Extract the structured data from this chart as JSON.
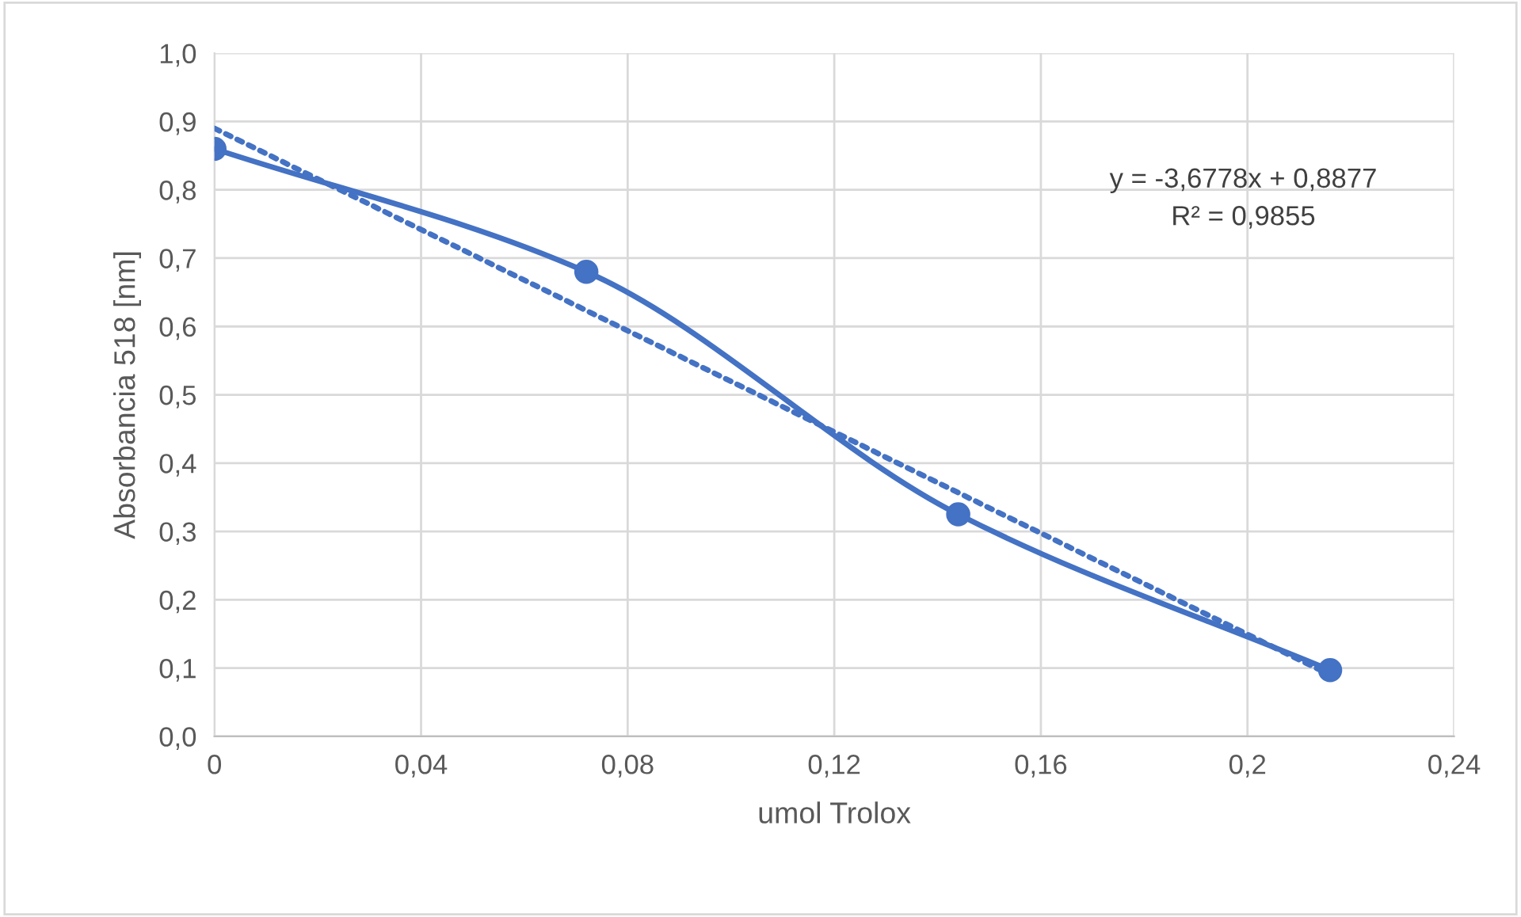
{
  "chart_data": {
    "type": "line",
    "xlabel": "umol Trolox",
    "ylabel": "Absorbancia 518 [nm]",
    "series": [
      {
        "color": "#4472c4",
        "x": [
          0,
          0.072,
          0.144,
          0.216
        ],
        "values": [
          0.86,
          0.68,
          0.325,
          0.097
        ],
        "marker": "circle",
        "line_style": "solid"
      },
      {
        "color": "#4472c4",
        "x": [
          0,
          0.216
        ],
        "values": [
          0.89,
          0.09
        ],
        "marker": "none",
        "line_style": "dotted"
      }
    ],
    "annotations": [
      "y = -3,6778x + 0,8877\nR² = 0,9855"
    ],
    "xlim": [
      0,
      0.24
    ],
    "ylim": [
      0,
      1.0
    ],
    "xticks": [
      0,
      {
        "value": 0.04,
        "label": "0,04"
      },
      {
        "value": 0.08,
        "label": "0,08"
      },
      {
        "value": 0.12,
        "label": "0,12"
      },
      {
        "value": 0.16,
        "label": "0,16"
      },
      {
        "value": 0.2,
        "label": "0,2"
      },
      {
        "value": 0.24,
        "label": "0,24"
      }
    ],
    "yticks": [
      {
        "value": 0,
        "label": "0,0"
      },
      {
        "value": 0.1,
        "label": "0,1"
      },
      {
        "value": 0.2,
        "label": "0,2"
      },
      {
        "value": 0.3,
        "label": "0,3"
      },
      {
        "value": 0.4,
        "label": "0,4"
      },
      {
        "value": 0.5,
        "label": "0,5"
      },
      {
        "value": 0.6,
        "label": "0,6"
      },
      {
        "value": 0.7,
        "label": "0,7"
      },
      {
        "value": 0.8,
        "label": "0,8"
      },
      {
        "value": 0.9,
        "label": "0,9"
      },
      {
        "value": 1.0,
        "label": "1,0"
      }
    ],
    "grid": true,
    "legend": false
  }
}
